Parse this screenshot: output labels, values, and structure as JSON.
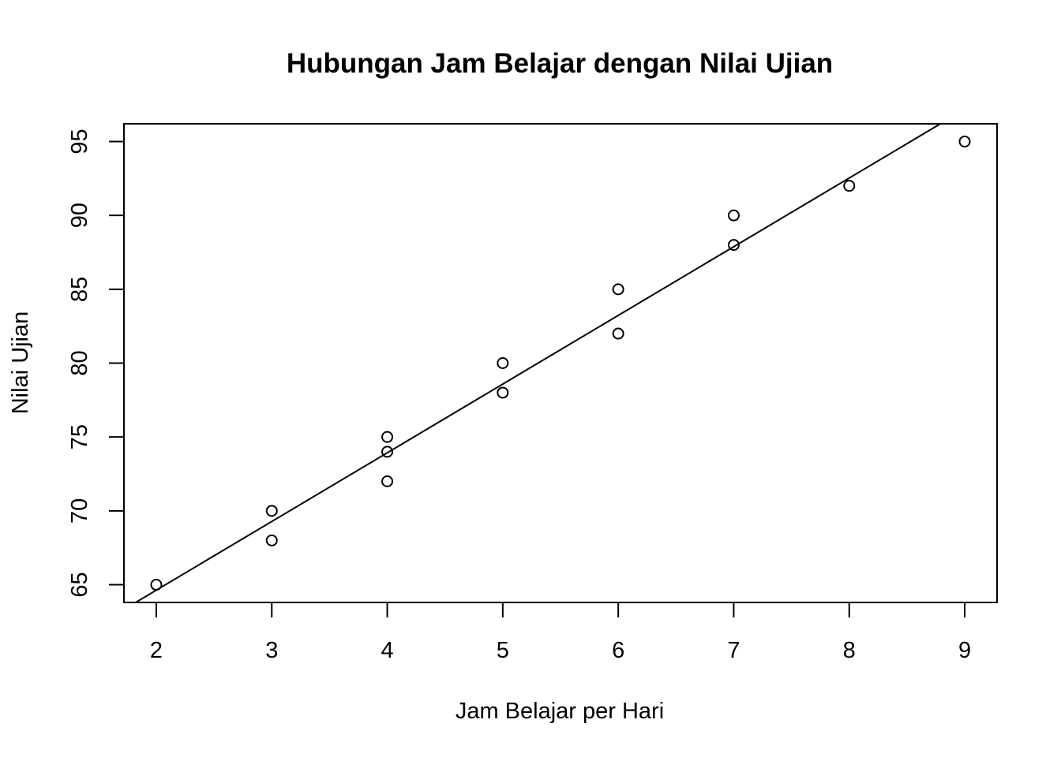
{
  "chart_data": {
    "type": "scatter",
    "title": "Hubungan Jam Belajar dengan Nilai Ujian",
    "xlabel": "Jam Belajar per Hari",
    "ylabel": "Nilai Ujian",
    "xlim": [
      1.72,
      9.28
    ],
    "ylim": [
      63.8,
      96.2
    ],
    "x_ticks": [
      "2",
      "3",
      "4",
      "5",
      "6",
      "7",
      "8",
      "9"
    ],
    "y_ticks": [
      "65",
      "70",
      "75",
      "80",
      "85",
      "90",
      "95"
    ],
    "grid": false,
    "legend": "none",
    "points": [
      {
        "x": 2,
        "y": 65
      },
      {
        "x": 3,
        "y": 70
      },
      {
        "x": 3,
        "y": 68
      },
      {
        "x": 4,
        "y": 75
      },
      {
        "x": 4,
        "y": 74
      },
      {
        "x": 4,
        "y": 72
      },
      {
        "x": 5,
        "y": 80
      },
      {
        "x": 5,
        "y": 78
      },
      {
        "x": 6,
        "y": 85
      },
      {
        "x": 6,
        "y": 82
      },
      {
        "x": 7,
        "y": 90
      },
      {
        "x": 7,
        "y": 88
      },
      {
        "x": 8,
        "y": 92
      },
      {
        "x": 9,
        "y": 95
      }
    ],
    "regression_line": {
      "intercept": 55.33,
      "slope": 4.65
    },
    "colors": {
      "points": "#000000",
      "line": "#000000",
      "frame": "#000000"
    }
  }
}
